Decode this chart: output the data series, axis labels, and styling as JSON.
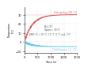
{
  "title": "",
  "xlabel": "Time (s)",
  "ylabel": "Temperature\n(C)",
  "xlim": [
    0,
    2000
  ],
  "ylim": [
    -12,
    38
  ],
  "hot_label": "Hot spring (30 °C)",
  "cold_label": "Cold Source (-5 °C)",
  "hot_color": "#e05050",
  "cold_color": "#60c8e8",
  "hot_asymptote": 30,
  "cold_asymptote": -5,
  "annotation1": "B=1.5T",
  "annotation2": "Span = 35°C",
  "annotation3": "AMR: Tc = 28 °C, 11 °C, 8 °C and -2°C",
  "hot_tau": 300,
  "cold_tau": 300,
  "yticks": [
    -10,
    0,
    10,
    20,
    30
  ],
  "xticks": [
    0,
    500,
    1000,
    1500,
    2000
  ],
  "plot_bg": "#ffffff"
}
